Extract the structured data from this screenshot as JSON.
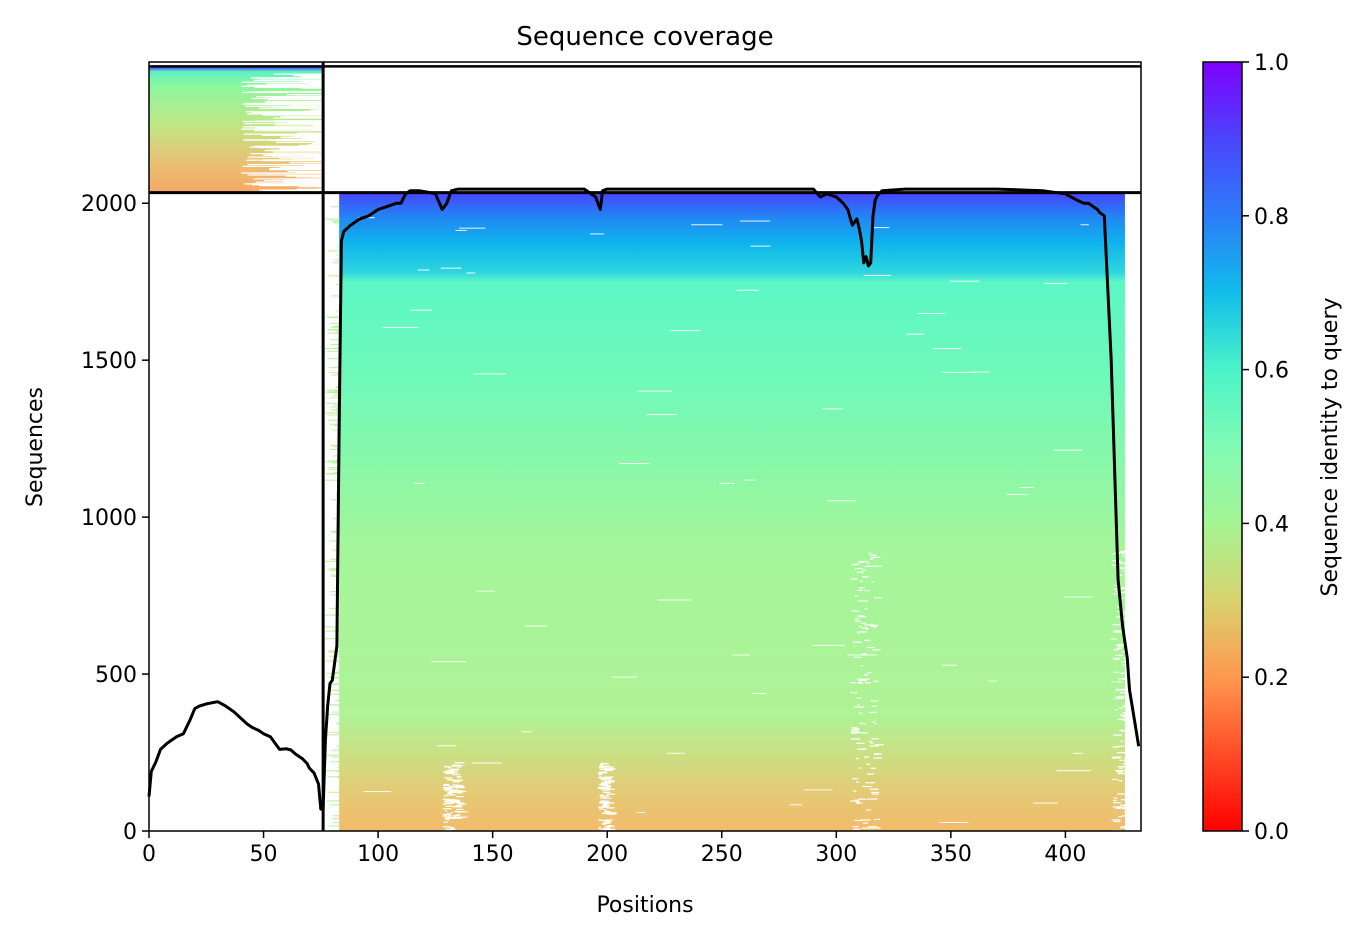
{
  "chart_data": {
    "type": "heatmap",
    "title": "Sequence coverage",
    "xlabel": "Positions",
    "ylabel": "Sequences",
    "xlim": [
      0,
      433
    ],
    "ylim": [
      0,
      2450
    ],
    "xticks": [
      0,
      50,
      100,
      150,
      200,
      250,
      300,
      350,
      400
    ],
    "yticks": [
      0,
      500,
      1000,
      1500,
      2000
    ],
    "colorbar": {
      "label": "Sequence identity to query",
      "colormap": "rainbow_r",
      "range": [
        0.0,
        1.0
      ],
      "ticks": [
        "0.0",
        "0.2",
        "0.4",
        "0.6",
        "0.8",
        "1.0"
      ]
    },
    "segments": [
      {
        "x_start": 0,
        "x_end": 76,
        "seq_start": 2034,
        "seq_end": 2436
      },
      {
        "x_start": 76,
        "x_end": 433,
        "seq_start": 0,
        "seq_end": 2034
      }
    ],
    "segment_boundary_x": 76,
    "segment_boundary_seq": 2034,
    "coverage_series": {
      "name": "coverage",
      "color": "#000000",
      "x": [
        0,
        1,
        3,
        5,
        8,
        12,
        15,
        18,
        20,
        22,
        25,
        30,
        33,
        37,
        40,
        43,
        45,
        48,
        50,
        53,
        55,
        57,
        60,
        62,
        64,
        67,
        69,
        70,
        72,
        74,
        75,
        76,
        77,
        78,
        79,
        80,
        82,
        83,
        84,
        85,
        88,
        92,
        96,
        100,
        104,
        108,
        110,
        112,
        114,
        118,
        122,
        125,
        128,
        130,
        132,
        135,
        140,
        150,
        170,
        190,
        195,
        197,
        198,
        200,
        210,
        250,
        290,
        293,
        296,
        300,
        303,
        305,
        307,
        309,
        310,
        311,
        312,
        313,
        314,
        315,
        316,
        317,
        318,
        320,
        330,
        350,
        370,
        390,
        400,
        405,
        408,
        410,
        412,
        414,
        415,
        417,
        420,
        423,
        425,
        426,
        427,
        428,
        430,
        432
      ],
      "values": [
        110,
        190,
        220,
        260,
        280,
        300,
        310,
        355,
        390,
        398,
        405,
        412,
        400,
        380,
        360,
        340,
        330,
        320,
        310,
        300,
        280,
        260,
        262,
        258,
        245,
        230,
        215,
        200,
        185,
        150,
        70,
        70,
        290,
        400,
        470,
        480,
        590,
        1300,
        1880,
        1910,
        1930,
        1950,
        1960,
        1980,
        1990,
        2000,
        2000,
        2030,
        2040,
        2040,
        2035,
        2030,
        1980,
        2000,
        2040,
        2045,
        2045,
        2045,
        2045,
        2045,
        2020,
        1980,
        2040,
        2045,
        2045,
        2045,
        2045,
        2020,
        2030,
        2020,
        2000,
        1980,
        1930,
        1950,
        1920,
        1880,
        1810,
        1830,
        1800,
        1810,
        1960,
        2010,
        2025,
        2040,
        2045,
        2045,
        2045,
        2040,
        2030,
        2010,
        2000,
        2000,
        1990,
        1980,
        1970,
        1960,
        1500,
        800,
        650,
        600,
        550,
        450,
        360,
        270
      ]
    }
  }
}
